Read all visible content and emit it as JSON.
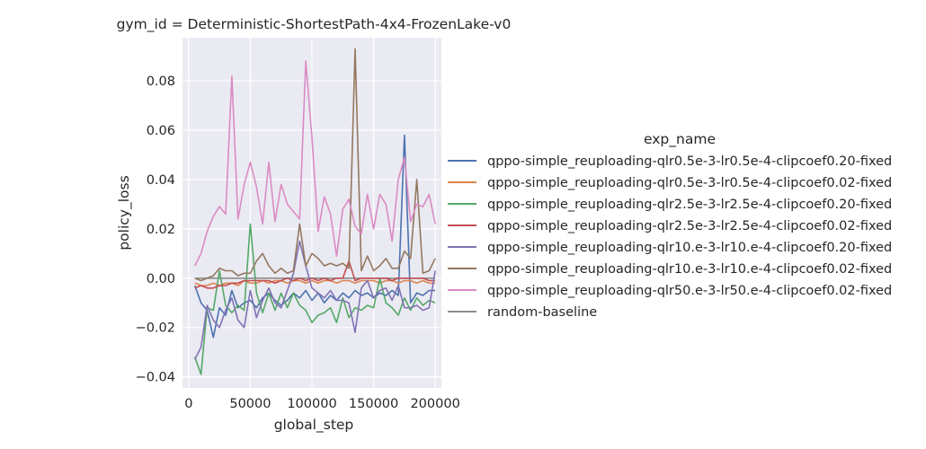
{
  "chart_data": {
    "type": "line",
    "title": "gym_id = Deterministic-ShortestPath-4x4-FrozenLake-v0",
    "xlabel": "global_step",
    "ylabel": "policy_loss",
    "xlim": [
      -5000,
      205000
    ],
    "ylim": [
      -0.0445,
      0.0975
    ],
    "xticks": [
      0,
      50000,
      100000,
      150000,
      200000
    ],
    "xtick_labels": [
      "0",
      "50000",
      "100000",
      "150000",
      "200000"
    ],
    "yticks": [
      -0.04,
      -0.02,
      0.0,
      0.02,
      0.04,
      0.06,
      0.08
    ],
    "ytick_labels": [
      "−0.04",
      "−0.02",
      "0.00",
      "0.02",
      "0.04",
      "0.06",
      "0.08"
    ],
    "grid": true,
    "legend_title": "exp_name",
    "legend_position": "right",
    "x": [
      5000,
      10000,
      15000,
      20000,
      25000,
      30000,
      35000,
      40000,
      45000,
      50000,
      55000,
      60000,
      65000,
      70000,
      75000,
      80000,
      85000,
      90000,
      95000,
      100000,
      105000,
      110000,
      115000,
      120000,
      125000,
      130000,
      135000,
      140000,
      145000,
      150000,
      155000,
      160000,
      165000,
      170000,
      175000,
      180000,
      185000,
      190000,
      195000,
      200000
    ],
    "series": [
      {
        "name": "qppo-simple_reuploading-qlr0.5e-3-lr0.5e-4-clipcoef0.20-fixed",
        "color": "#4c72b0",
        "values": [
          -0.003,
          -0.01,
          -0.013,
          -0.024,
          -0.012,
          -0.015,
          -0.005,
          -0.012,
          -0.01,
          -0.009,
          -0.012,
          -0.008,
          -0.006,
          -0.009,
          -0.011,
          -0.009,
          -0.006,
          -0.008,
          -0.005,
          -0.009,
          -0.006,
          -0.01,
          -0.007,
          -0.009,
          -0.006,
          -0.008,
          -0.005,
          -0.007,
          -0.006,
          -0.008,
          -0.006,
          -0.007,
          -0.005,
          -0.007,
          0.058,
          -0.01,
          -0.006,
          -0.007,
          -0.005,
          -0.005
        ]
      },
      {
        "name": "qppo-simple_reuploading-qlr0.5e-3-lr0.5e-4-clipcoef0.02-fixed",
        "color": "#dd8452",
        "values": [
          -0.002,
          -0.003,
          -0.003,
          -0.002,
          -0.003,
          -0.002,
          -0.002,
          -0.003,
          -0.001,
          -0.002,
          -0.002,
          -0.001,
          -0.002,
          -0.001,
          -0.001,
          -0.002,
          -0.001,
          -0.001,
          -0.002,
          -0.001,
          -0.002,
          -0.001,
          -0.001,
          -0.002,
          -0.001,
          -0.001,
          -0.002,
          -0.001,
          -0.001,
          -0.001,
          -0.002,
          -0.001,
          -0.001,
          -0.002,
          -0.001,
          -0.001,
          -0.002,
          -0.001,
          -0.002,
          -0.002
        ]
      },
      {
        "name": "qppo-simple_reuploading-qlr2.5e-3-lr2.5e-4-clipcoef0.20-fixed",
        "color": "#55a868",
        "values": [
          -0.032,
          -0.039,
          -0.012,
          -0.013,
          0.003,
          -0.011,
          -0.014,
          -0.011,
          -0.013,
          0.022,
          -0.006,
          -0.014,
          -0.006,
          -0.013,
          -0.006,
          -0.012,
          -0.006,
          -0.011,
          -0.013,
          -0.018,
          -0.015,
          -0.014,
          -0.012,
          -0.018,
          -0.008,
          -0.016,
          -0.012,
          -0.013,
          -0.011,
          -0.012,
          0.0,
          -0.01,
          -0.012,
          -0.015,
          -0.008,
          -0.013,
          -0.008,
          -0.011,
          -0.009,
          -0.01
        ]
      },
      {
        "name": "qppo-simple_reuploading-qlr2.5e-3-lr2.5e-4-clipcoef0.02-fixed",
        "color": "#c44e52",
        "values": [
          -0.004,
          -0.003,
          -0.004,
          -0.004,
          -0.003,
          -0.003,
          -0.002,
          -0.002,
          -0.001,
          -0.001,
          -0.001,
          -0.001,
          -0.001,
          -0.002,
          -0.001,
          0.0,
          -0.001,
          0.0,
          -0.001,
          0.0,
          -0.001,
          0.0,
          -0.001,
          0.0,
          0.0,
          0.007,
          -0.001,
          0.0,
          0.0,
          0.0,
          0.0,
          0.0,
          -0.001,
          0.0,
          0.0,
          0.0,
          0.0,
          0.0,
          -0.001,
          -0.001
        ]
      },
      {
        "name": "qppo-simple_reuploading-qlr10.e-3-lr10.e-4-clipcoef0.20-fixed",
        "color": "#8172b3",
        "values": [
          -0.033,
          -0.028,
          -0.011,
          -0.017,
          -0.02,
          -0.013,
          -0.008,
          -0.017,
          -0.02,
          -0.005,
          -0.016,
          -0.009,
          -0.004,
          -0.01,
          -0.012,
          -0.005,
          0.002,
          0.015,
          0.005,
          -0.004,
          -0.006,
          -0.008,
          -0.005,
          -0.009,
          -0.009,
          -0.01,
          -0.022,
          -0.004,
          -0.001,
          -0.008,
          -0.005,
          -0.004,
          -0.009,
          -0.003,
          -0.012,
          -0.012,
          -0.011,
          -0.013,
          -0.012,
          0.003
        ]
      },
      {
        "name": "qppo-simple_reuploading-qlr10.e-3-lr10.e-4-clipcoef0.02-fixed",
        "color": "#937860",
        "values": [
          0.0,
          -0.001,
          0.0,
          0.001,
          0.004,
          0.003,
          0.003,
          0.001,
          0.002,
          0.002,
          0.007,
          0.01,
          0.005,
          0.002,
          0.004,
          0.002,
          0.003,
          0.022,
          0.005,
          0.01,
          0.008,
          0.005,
          0.006,
          0.005,
          0.006,
          0.004,
          0.093,
          0.003,
          0.009,
          0.003,
          0.005,
          0.008,
          0.004,
          0.004,
          0.011,
          0.008,
          0.04,
          0.002,
          0.003,
          0.008
        ]
      },
      {
        "name": "qppo-simple_reuploading-qlr50.e-3-lr50.e-4-clipcoef0.02-fixed",
        "color": "#da8bc3",
        "values": [
          0.005,
          0.01,
          0.019,
          0.025,
          0.029,
          0.026,
          0.082,
          0.024,
          0.038,
          0.047,
          0.037,
          0.022,
          0.047,
          0.023,
          0.038,
          0.03,
          0.027,
          0.024,
          0.088,
          0.057,
          0.019,
          0.033,
          0.026,
          0.009,
          0.028,
          0.032,
          0.021,
          0.018,
          0.034,
          0.02,
          0.034,
          0.03,
          0.015,
          0.04,
          0.049,
          0.023,
          0.03,
          0.029,
          0.034,
          0.022
        ]
      },
      {
        "name": "random-baseline",
        "color": "#8c8c8c",
        "values": [
          0.0,
          0.0,
          0.0,
          0.0,
          0.0,
          0.0,
          0.0,
          0.0,
          0.0,
          0.0,
          0.0,
          0.0,
          0.0,
          0.0,
          0.0,
          0.0,
          0.0,
          0.0,
          0.0,
          0.0,
          0.0,
          0.0,
          0.0,
          0.0,
          0.0,
          0.0,
          0.0,
          0.0,
          0.0,
          0.0,
          0.0,
          0.0,
          0.0,
          0.0,
          0.0,
          0.0,
          0.0,
          0.0,
          0.0,
          0.0
        ]
      }
    ]
  }
}
